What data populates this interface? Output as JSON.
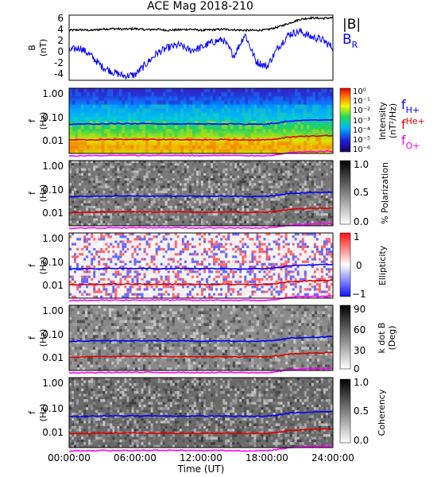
{
  "chart_data": [
    {
      "type": "line",
      "title": "ACE Mag 2018-210",
      "ylabel": "B",
      "yunit": "(nT)",
      "ylim": [
        -5,
        7
      ],
      "yticks": [
        "6",
        "4",
        "2",
        "0",
        "-2",
        "-4"
      ],
      "legend": {
        "b_total": "|B|",
        "b_r_main": "B",
        "b_r_sub": "R"
      },
      "series": [
        {
          "name": "|B|",
          "color": "#000000",
          "x": [
            0,
            1,
            2,
            3,
            4,
            5,
            6,
            7,
            8,
            9,
            10,
            11,
            12,
            13,
            14,
            15,
            16,
            17,
            18,
            19,
            20,
            21,
            22,
            23,
            24
          ],
          "values": [
            4.2,
            4.3,
            4.2,
            4.4,
            4.5,
            4.4,
            4.5,
            4.3,
            4.4,
            4.2,
            4.3,
            4.4,
            4.2,
            4.3,
            4.4,
            4.3,
            4.2,
            4.2,
            4.3,
            4.8,
            5.5,
            6.2,
            6.5,
            6.4,
            6.5
          ]
        },
        {
          "name": "B_R",
          "color": "#0000ff",
          "x": [
            0,
            1,
            2,
            3,
            4,
            5,
            6,
            7,
            8,
            9,
            10,
            11,
            12,
            13,
            14,
            15,
            16,
            17,
            18,
            19,
            20,
            21,
            22,
            23,
            24
          ],
          "values": [
            0.5,
            1.0,
            -0.5,
            -2.5,
            -3.5,
            -4.2,
            -4.0,
            -2.0,
            0.0,
            1.0,
            1.5,
            0.5,
            1.0,
            2.0,
            2.5,
            -0.5,
            3.5,
            -1.5,
            -2.5,
            1.0,
            3.5,
            4.0,
            3.0,
            2.5,
            1.0
          ]
        }
      ]
    },
    {
      "type": "heatmap",
      "ylabel": "f",
      "yunit": "(Hz)",
      "scale": "log",
      "yticks": [
        "1.00",
        "0.10",
        "0.01"
      ],
      "colorbar": {
        "label": "Intensity",
        "unit": "(nT²/Hz)",
        "ticks": [
          "10⁰",
          "10⁻¹",
          "10⁻²",
          "10⁻³",
          "10⁻⁴",
          "10⁻⁵",
          "10⁻⁶"
        ]
      },
      "legend": [
        {
          "main": "f",
          "sub": "H+",
          "color": "#0000ff"
        },
        {
          "main": "f",
          "sup": "He+",
          "color": "#dd0000"
        },
        {
          "main": "f",
          "sub": "O+",
          "color": "#ee00ee"
        }
      ]
    },
    {
      "type": "heatmap",
      "ylabel": "f",
      "yunit": "(Hz)",
      "yticks": [
        "1.00",
        "0.10",
        "0.01"
      ],
      "colorbar": {
        "label": "% Polarization",
        "ticks": [
          "1.0",
          "0.5",
          "0.0"
        ]
      }
    },
    {
      "type": "heatmap",
      "ylabel": "f",
      "yunit": "(Hz)",
      "yticks": [
        "1.00",
        "0.10",
        "0.01"
      ],
      "colorbar": {
        "label": "Ellipticity",
        "ticks": [
          "1",
          "0",
          "−1"
        ]
      }
    },
    {
      "type": "heatmap",
      "ylabel": "f",
      "yunit": "(Hz)",
      "yticks": [
        "1.00",
        "0.10",
        "0.01"
      ],
      "colorbar": {
        "label": "k dot B",
        "unit": "(Deg)",
        "ticks": [
          "90",
          "60",
          "30",
          "0"
        ]
      }
    },
    {
      "type": "heatmap",
      "ylabel": "f",
      "yunit": "(Hz)",
      "yticks": [
        "1.00",
        "0.10",
        "0.01"
      ],
      "colorbar": {
        "label": "Coherency",
        "ticks": [
          "1.0",
          "0.5",
          "0.0"
        ]
      }
    }
  ],
  "gyro_lines": {
    "x": [
      0,
      2,
      4,
      6,
      8,
      10,
      12,
      14,
      16,
      18,
      19,
      20,
      22,
      24
    ],
    "f_h": [
      0.064,
      0.066,
      0.068,
      0.068,
      0.067,
      0.067,
      0.066,
      0.067,
      0.065,
      0.066,
      0.072,
      0.085,
      0.092,
      0.096
    ],
    "f_he": [
      0.016,
      0.0165,
      0.017,
      0.017,
      0.0168,
      0.0168,
      0.0165,
      0.0168,
      0.0163,
      0.0165,
      0.018,
      0.021,
      0.023,
      0.024
    ],
    "f_o": [
      0.004,
      0.0041,
      0.0042,
      0.0042,
      0.0042,
      0.0042,
      0.0041,
      0.0042,
      0.0041,
      0.0041,
      0.0045,
      0.0053,
      0.0058,
      0.006
    ]
  },
  "x_axis": {
    "xlabel": "Time (UT)",
    "ticks": [
      "00:00:00",
      "06:00:00",
      "12:00:00",
      "18:00:00",
      "24:00:00"
    ]
  }
}
